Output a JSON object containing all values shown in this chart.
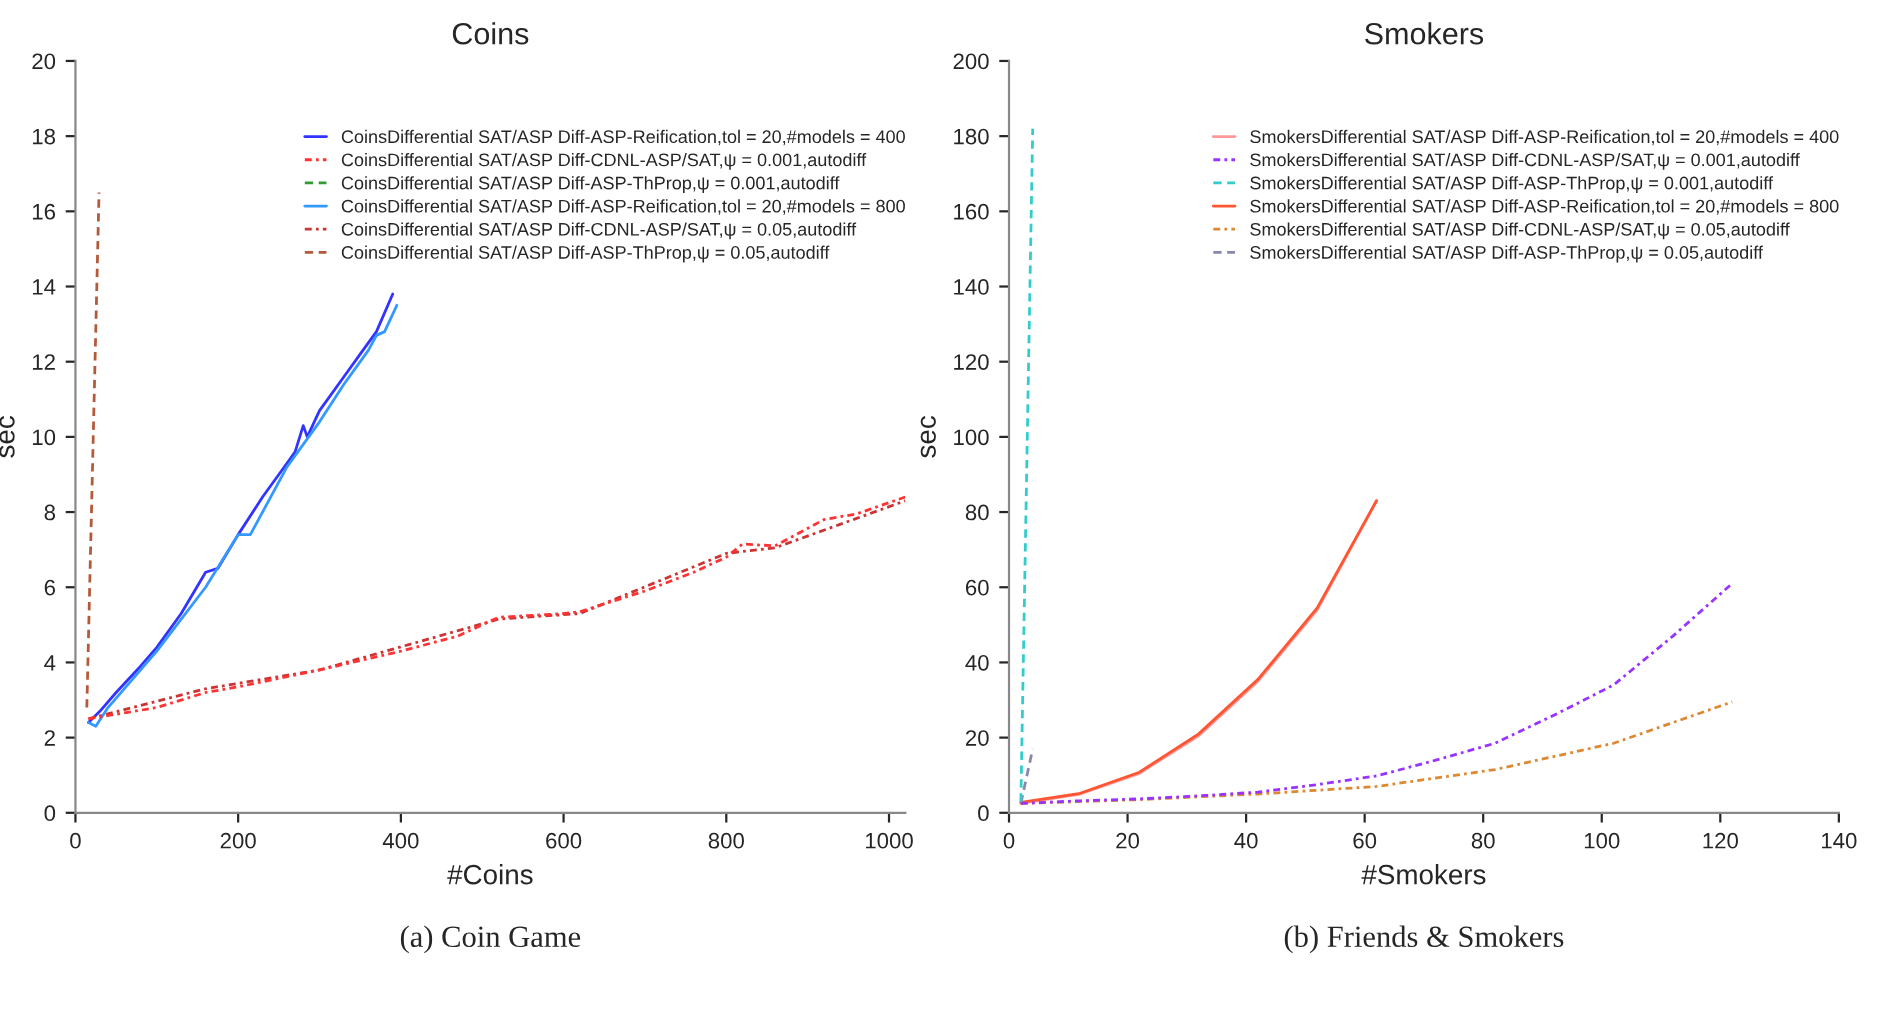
{
  "chart_data": [
    {
      "type": "line",
      "title": "Coins",
      "xlabel": "#Coins",
      "ylabel": "sec",
      "xlim": [
        0,
        1020
      ],
      "xticks": [
        0,
        200,
        400,
        600,
        800,
        1000
      ],
      "ylim": [
        0,
        20
      ],
      "yticks": [
        0,
        2,
        4,
        6,
        8,
        10,
        12,
        14,
        16,
        18,
        20
      ],
      "grid": false,
      "legend": "top right",
      "annotations": [
        "(a) Coin Game"
      ],
      "series": [
        {
          "name": "CoinsDifferential SAT/ASP Diff-ASP-Reification,tol = 20,#models = 400",
          "color": "#3333ff",
          "line_style": "solid",
          "x": [
            16,
            30,
            50,
            80,
            100,
            130,
            160,
            175,
            200,
            230,
            260,
            270,
            280,
            285,
            300,
            330,
            350,
            370,
            390
          ],
          "values": [
            2.4,
            2.7,
            3.2,
            3.9,
            4.4,
            5.3,
            6.4,
            6.5,
            7.4,
            8.4,
            9.3,
            9.6,
            10.3,
            10.0,
            10.7,
            11.6,
            12.2,
            12.8,
            13.8
          ]
        },
        {
          "name": "CoinsDifferential SAT/ASP Diff-CDNL-ASP/SAT,ψ = 0.001,autodiff",
          "color": "#ff3333",
          "line_style": "dashdot",
          "x": [
            16,
            100,
            160,
            200,
            300,
            400,
            470,
            520,
            600,
            620,
            700,
            760,
            800,
            820,
            860,
            920,
            960,
            1020
          ],
          "values": [
            2.5,
            2.8,
            3.2,
            3.35,
            3.8,
            4.3,
            4.7,
            5.2,
            5.3,
            5.35,
            5.9,
            6.4,
            6.8,
            7.15,
            7.1,
            7.8,
            7.95,
            8.4
          ]
        },
        {
          "name": "CoinsDifferential SAT/ASP Diff-ASP-ThProp,ψ = 0.001,autodiff",
          "color": "#339933",
          "line_style": "dashed"
        },
        {
          "name": "CoinsDifferential SAT/ASP Diff-ASP-Reification,tol = 20,#models = 800",
          "color": "#3399ff",
          "line_style": "solid",
          "x": [
            16,
            25,
            40,
            100,
            160,
            200,
            215,
            260,
            300,
            330,
            360,
            370,
            380,
            395
          ],
          "values": [
            2.4,
            2.3,
            2.8,
            4.3,
            6.0,
            7.4,
            7.4,
            9.2,
            10.4,
            11.4,
            12.3,
            12.7,
            12.8,
            13.5
          ]
        },
        {
          "name": "CoinsDifferential SAT/ASP Diff-CDNL-ASP/SAT,ψ = 0.05,autodiff",
          "color": "#cc3333",
          "line_style": "dashdot",
          "x": [
            16,
            160,
            300,
            520,
            620,
            800,
            860,
            1020
          ],
          "values": [
            2.5,
            3.3,
            3.8,
            5.15,
            5.3,
            6.9,
            7.05,
            8.3
          ]
        },
        {
          "name": "CoinsDifferential SAT/ASP Diff-ASP-ThProp,ψ = 0.05,autodiff",
          "color": "#b35a3a",
          "line_style": "dashed",
          "x": [
            14,
            29
          ],
          "values": [
            2.8,
            16.5
          ]
        }
      ]
    },
    {
      "type": "line",
      "title": "Smokers",
      "xlabel": "#Smokers",
      "ylabel": "sec",
      "xlim": [
        0,
        140
      ],
      "xticks": [
        0,
        20,
        40,
        60,
        80,
        100,
        120,
        140
      ],
      "ylim": [
        0,
        200
      ],
      "yticks": [
        0,
        20,
        40,
        60,
        80,
        100,
        120,
        140,
        160,
        180,
        200
      ],
      "grid": false,
      "legend": "top right",
      "annotations": [
        "(b) Friends & Smokers"
      ],
      "series": [
        {
          "name": "SmokersDifferential SAT/ASP Diff-ASP-Reification,tol = 20,#models = 400",
          "color": "#ff9999",
          "line_style": "solid",
          "x": [
            2,
            12,
            22,
            32,
            42,
            52,
            62
          ],
          "values": [
            2.5,
            5,
            10.5,
            20.5,
            35,
            54,
            83
          ]
        },
        {
          "name": "SmokersDifferential SAT/ASP Diff-CDNL-ASP/SAT,ψ = 0.001,autodiff",
          "color": "#9933ff",
          "line_style": "dashdot",
          "x": [
            2,
            12,
            22,
            32,
            42,
            52,
            62,
            72,
            82,
            92,
            102,
            112,
            122
          ],
          "values": [
            2.5,
            3.2,
            3.7,
            4.5,
            5.5,
            7.5,
            9.8,
            14,
            18.5,
            26,
            34,
            47,
            61
          ]
        },
        {
          "name": "SmokersDifferential SAT/ASP Diff-ASP-ThProp,ψ = 0.001,autodiff",
          "color": "#33cccc",
          "line_style": "dashed",
          "x": [
            2,
            4
          ],
          "values": [
            3,
            182
          ]
        },
        {
          "name": "SmokersDifferential SAT/ASP Diff-ASP-Reification,tol = 20,#models = 800",
          "color": "#ff5533",
          "line_style": "solid",
          "x": [
            2,
            12,
            22,
            32,
            42,
            52,
            62
          ],
          "values": [
            2.8,
            5.2,
            10.8,
            21,
            35.5,
            54.5,
            83
          ]
        },
        {
          "name": "SmokersDifferential SAT/ASP Diff-CDNL-ASP/SAT,ψ = 0.05,autodiff",
          "color": "#dd8833",
          "line_style": "dashdot",
          "x": [
            2,
            22,
            42,
            62,
            82,
            102,
            122
          ],
          "values": [
            2.5,
            3.5,
            5,
            7,
            11.5,
            18.5,
            29.5
          ]
        },
        {
          "name": "SmokersDifferential SAT/ASP Diff-ASP-ThProp,ψ = 0.05,autodiff",
          "color": "#8888aa",
          "line_style": "dashed",
          "x": [
            2,
            4
          ],
          "values": [
            2.5,
            17
          ]
        }
      ]
    }
  ]
}
